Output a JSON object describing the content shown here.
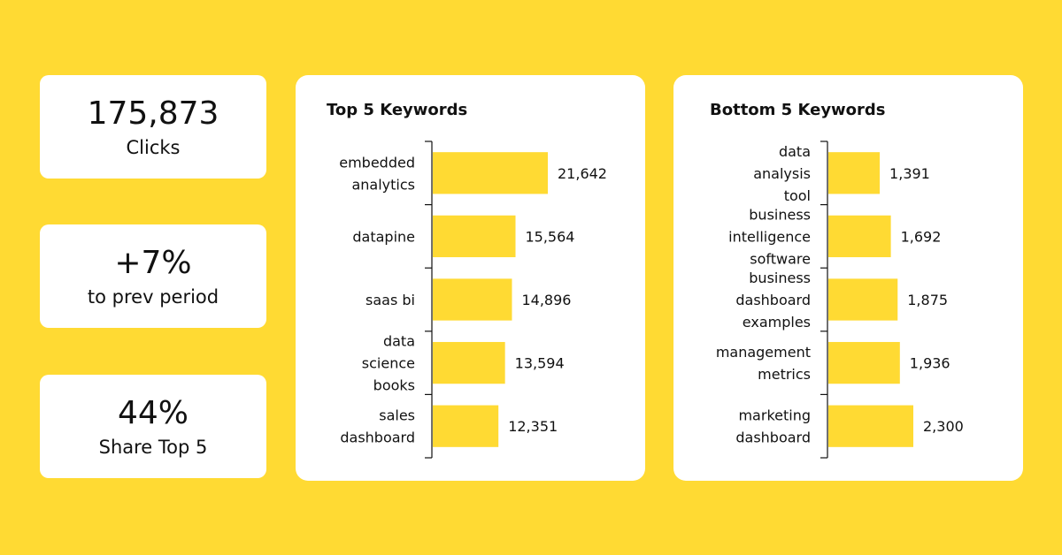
{
  "kpis": [
    {
      "value": "175,873",
      "label": "Clicks"
    },
    {
      "value": "+7%",
      "label": "to prev period"
    },
    {
      "value": "44%",
      "label": "Share Top 5"
    }
  ],
  "colors": {
    "background": "#FFDA33",
    "bar": "#FFDA33",
    "card": "#FFFFFF",
    "axis": "#111111"
  },
  "chart_data": [
    {
      "type": "bar",
      "orientation": "horizontal",
      "title": "Top 5 Keywords",
      "categories": [
        [
          "embedded",
          "analytics"
        ],
        [
          "datapine"
        ],
        [
          "saas bi"
        ],
        [
          "data",
          "science",
          "books"
        ],
        [
          "sales",
          "dashboard"
        ]
      ],
      "values": [
        21642,
        15564,
        14896,
        13594,
        12351
      ],
      "value_labels": [
        "21,642",
        "15,564",
        "14,896",
        "13,594",
        "12,351"
      ]
    },
    {
      "type": "bar",
      "orientation": "horizontal",
      "title": "Bottom 5 Keywords",
      "categories": [
        [
          "data",
          "analysis",
          "tool"
        ],
        [
          "business",
          "intelligence",
          "software"
        ],
        [
          "business",
          "dashboard",
          "examples"
        ],
        [
          "management",
          "metrics"
        ],
        [
          "marketing",
          "dashboard"
        ]
      ],
      "values": [
        1391,
        1692,
        1875,
        1936,
        2300
      ],
      "value_labels": [
        "1,391",
        "1,692",
        "1,875",
        "1,936",
        "2,300"
      ]
    }
  ]
}
